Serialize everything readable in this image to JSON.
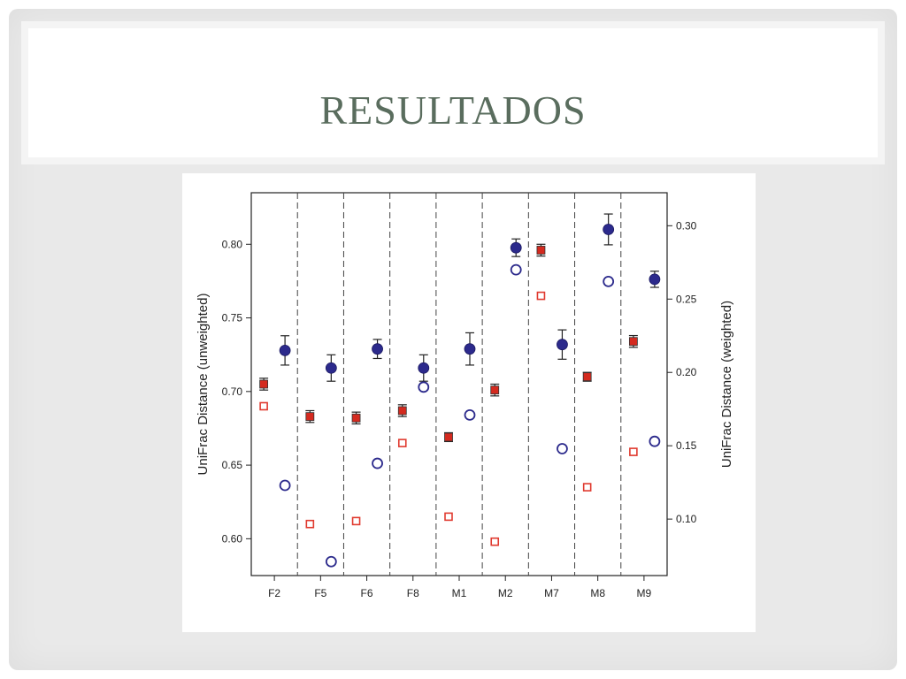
{
  "slide": {
    "title": "RESULTADOS"
  },
  "chart_data": {
    "type": "scatter",
    "categories": [
      "F2",
      "F5",
      "F6",
      "F8",
      "M1",
      "M2",
      "M7",
      "M8",
      "M9"
    ],
    "ylabel_left": "UniFrac Distance (unweighted)",
    "ylabel_right": "UniFrac Distance (weighted)",
    "ylim_left": [
      0.575,
      0.835
    ],
    "ylim_right": [
      0.0615,
      0.3225
    ],
    "yticks_left": [
      "0.60",
      "0.65",
      "0.70",
      "0.75",
      "0.80"
    ],
    "yticks_left_values": [
      0.6,
      0.65,
      0.7,
      0.75,
      0.8
    ],
    "yticks_right": [
      "0.10",
      "0.15",
      "0.20",
      "0.25",
      "0.30"
    ],
    "yticks_right_values": [
      0.1,
      0.15,
      0.2,
      0.25,
      0.3
    ],
    "grid": false,
    "category_separators": "dashed",
    "series": [
      {
        "marker": "filled-square",
        "color": "#d42a1f",
        "axis": "left",
        "values": [
          0.705,
          0.683,
          0.682,
          0.687,
          0.669,
          0.701,
          0.796,
          0.71,
          0.734
        ],
        "error": [
          0.004,
          0.004,
          0.004,
          0.004,
          0.003,
          0.004,
          0.004,
          0.003,
          0.004
        ]
      },
      {
        "marker": "open-square",
        "color": "#e03a2f",
        "axis": "left",
        "values": [
          0.69,
          0.61,
          0.612,
          0.665,
          0.615,
          0.598,
          0.765,
          0.635,
          0.659
        ]
      },
      {
        "marker": "filled-circle",
        "color": "#2c2a8c",
        "axis": "right",
        "values": [
          0.215,
          0.203,
          0.216,
          0.203,
          0.216,
          0.285,
          0.219,
          0.2975,
          0.2635
        ],
        "error": [
          0.01,
          0.009,
          0.0065,
          0.009,
          0.011,
          0.006,
          0.01,
          0.0105,
          0.0055
        ]
      },
      {
        "marker": "open-circle",
        "color": "#2c2a8c",
        "axis": "right",
        "values": [
          0.123,
          0.071,
          0.138,
          0.19,
          0.171,
          0.27,
          0.148,
          0.262,
          0.153
        ]
      }
    ]
  },
  "colors": {
    "title": "#5a6d5e",
    "slide_background": "#e9e9e9",
    "red_series": "#d42a1f",
    "blue_series": "#2c2a8c"
  }
}
